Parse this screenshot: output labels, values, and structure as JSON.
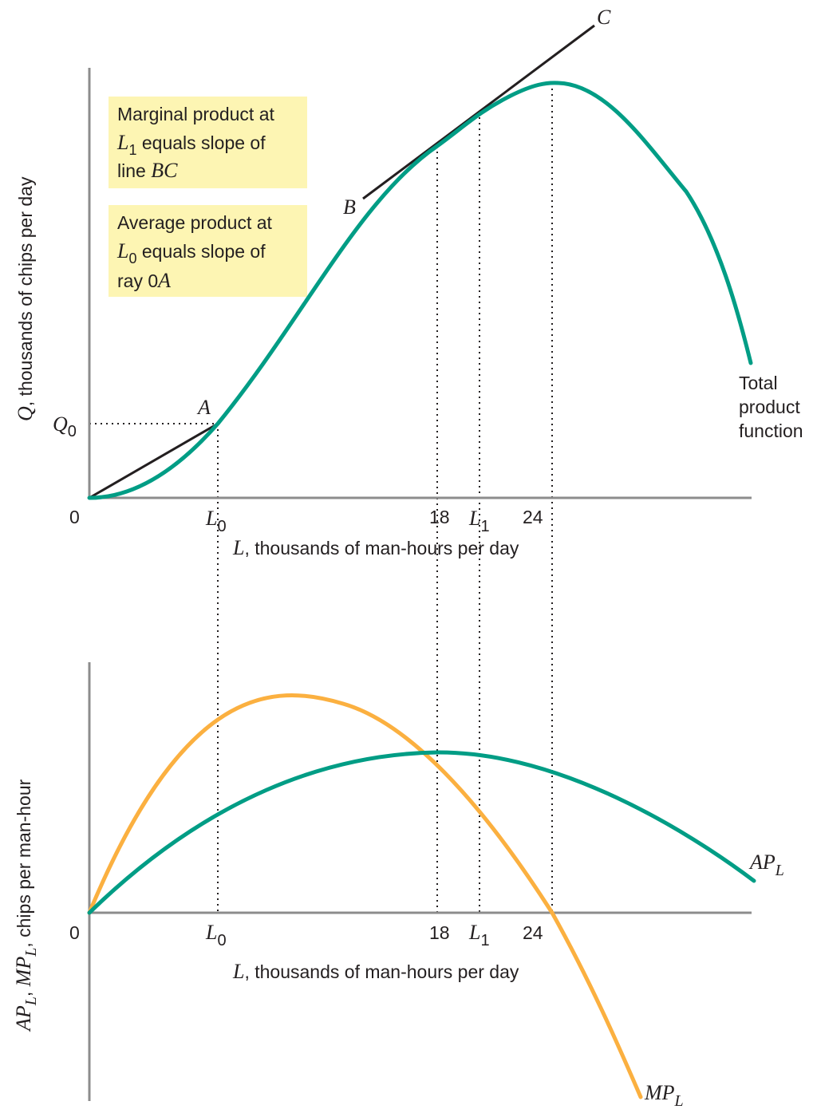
{
  "colors": {
    "total_product": "#009d85",
    "average_product": "#009d85",
    "marginal_product": "#fbb040",
    "note_background": "#fdf5b3",
    "axis": "#8c8c8c"
  },
  "chart_data": [
    {
      "type": "line",
      "panel": "top",
      "xlabel": "L, thousands of man-hours per day",
      "ylabel": "Q, thousands of chips per day",
      "origin_label": "0",
      "x_ticks": [
        {
          "value": 6,
          "label": "L0"
        },
        {
          "value": 18,
          "label": "18"
        },
        {
          "value": 20,
          "label": "L1"
        },
        {
          "value": 24,
          "label": "24"
        }
      ],
      "y_ticks": [
        {
          "label": "Q0"
        }
      ],
      "xlim": [
        0,
        30
      ],
      "series": [
        {
          "name": "Total product function",
          "color": "#009d85"
        }
      ],
      "lines": [
        {
          "name": "ray 0A",
          "from": "0",
          "to": "A"
        },
        {
          "name": "BC",
          "from": "B",
          "to": "C"
        }
      ],
      "point_labels": [
        "A",
        "B",
        "C"
      ],
      "notes": [
        "Marginal product at L1 equals slope of line BC",
        "Average product at L0 equals slope of ray 0A"
      ]
    },
    {
      "type": "line",
      "panel": "bottom",
      "xlabel": "L, thousands of man-hours per day",
      "ylabel": "APL, MPL, chips per man-hour",
      "origin_label": "0",
      "x_ticks": [
        {
          "value": 6,
          "label": "L0"
        },
        {
          "value": 18,
          "label": "18"
        },
        {
          "value": 20,
          "label": "L1"
        },
        {
          "value": 24,
          "label": "24"
        }
      ],
      "xlim": [
        0,
        30
      ],
      "series": [
        {
          "name": "APL",
          "color": "#009d85"
        },
        {
          "name": "MPL",
          "color": "#fbb040"
        }
      ]
    }
  ],
  "text": {
    "top": {
      "c_label": "C",
      "b_label": "B",
      "a_label": "A",
      "q0_main": "Q",
      "q0_sub": "0",
      "zero": "0",
      "l0_main": "L",
      "l0_sub": "0",
      "tick_18": "18",
      "l1_main": "L",
      "l1_sub": "1",
      "tick_24": "24",
      "xlabel_var": "L",
      "xlabel_rest": ", thousands of man-hours per day",
      "ylabel_var": "Q",
      "ylabel_rest": ", thousands of chips per day",
      "curve_label_1": "Total",
      "curve_label_2": "product",
      "curve_label_3": "function",
      "note1_line1": "Marginal product at",
      "note1_l": "L",
      "note1_l_sub": "1",
      "note1_line2_rest": " equals slope of",
      "note1_line3": "line ",
      "note1_bc": "BC",
      "note2_line1": "Average product at",
      "note2_l": "L",
      "note2_l_sub": "0",
      "note2_line2_rest": " equals slope of",
      "note2_line3": "ray 0",
      "note2_a": "A"
    },
    "bottom": {
      "zero": "0",
      "l0_main": "L",
      "l0_sub": "0",
      "tick_18": "18",
      "l1_main": "L",
      "l1_sub": "1",
      "tick_24": "24",
      "xlabel_var": "L",
      "xlabel_rest": ", thousands of man-hours per day",
      "ylabel_ap": "AP",
      "ylabel_ap_sub": "L",
      "ylabel_sep": ", ",
      "ylabel_mp": "MP",
      "ylabel_mp_sub": "L",
      "ylabel_rest": ", chips per man-hour",
      "ap_main": "AP",
      "ap_sub": "L",
      "mp_main": "MP",
      "mp_sub": "L"
    }
  }
}
